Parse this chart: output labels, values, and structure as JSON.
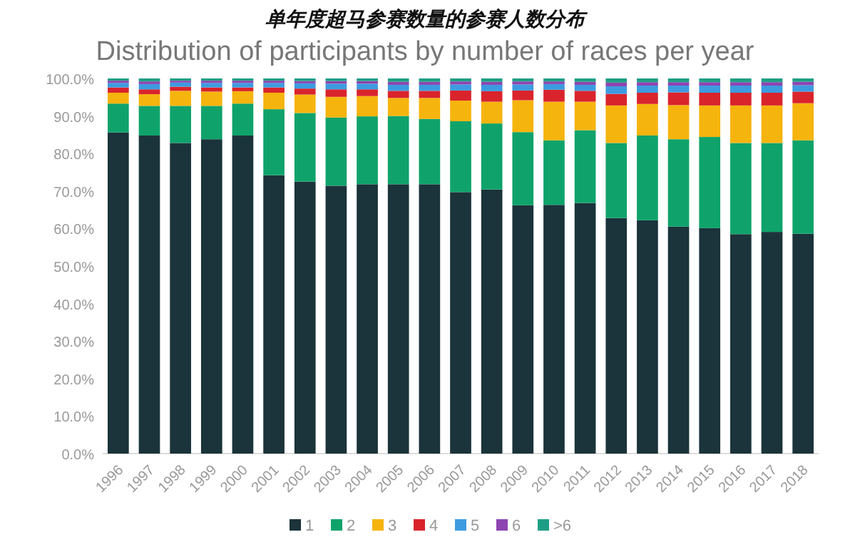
{
  "chart_data": {
    "type": "bar",
    "stacked": true,
    "title": "单年度超马参赛数量的参赛人数分布",
    "subtitle": "Distribution of participants by number of races per year",
    "categories": [
      "1996",
      "1997",
      "1998",
      "1999",
      "2000",
      "2001",
      "2002",
      "2003",
      "2004",
      "2005",
      "2006",
      "2007",
      "2008",
      "2009",
      "2010",
      "2011",
      "2012",
      "2013",
      "2014",
      "2015",
      "2016",
      "2017",
      "2018"
    ],
    "ylim": [
      0,
      100
    ],
    "yticks": [
      {
        "value": 0,
        "label": "0.0%"
      },
      {
        "value": 10,
        "label": "10.0%"
      },
      {
        "value": 20,
        "label": "20.0%"
      },
      {
        "value": 30,
        "label": "30.0%"
      },
      {
        "value": 40,
        "label": "40.0%"
      },
      {
        "value": 50,
        "label": "50.0%"
      },
      {
        "value": 60,
        "label": "60.0%"
      },
      {
        "value": 70,
        "label": "70.0%"
      },
      {
        "value": 80,
        "label": "80.0%"
      },
      {
        "value": 90,
        "label": "90.0%"
      },
      {
        "value": 100,
        "label": "100.0%"
      }
    ],
    "legend": "bottom",
    "grid": false,
    "series": [
      {
        "name": "1",
        "color": "#1b333a",
        "values": [
          85.6,
          84.8,
          82.8,
          83.8,
          84.8,
          74.2,
          72.5,
          71.4,
          71.8,
          71.8,
          71.8,
          69.7,
          70.4,
          66.2,
          66.3,
          66.8,
          62.8,
          62.2,
          60.5,
          60.1,
          58.5,
          59.1,
          58.6
        ]
      },
      {
        "name": "2",
        "color": "#0fa36b",
        "values": [
          7.7,
          7.9,
          9.9,
          8.9,
          8.5,
          17.6,
          18.3,
          18.2,
          18.1,
          18.2,
          17.4,
          18.9,
          17.6,
          19.5,
          17.2,
          19.4,
          20.0,
          22.6,
          23.3,
          24.3,
          24.3,
          23.7,
          24.9
        ]
      },
      {
        "name": "3",
        "color": "#f6b40e",
        "values": [
          2.9,
          3.1,
          4.0,
          3.8,
          3.3,
          4.4,
          4.9,
          5.5,
          5.4,
          4.8,
          5.6,
          5.5,
          5.8,
          8.5,
          10.3,
          7.6,
          10.0,
          8.4,
          9.1,
          8.4,
          10.0,
          10.0,
          9.9
        ]
      },
      {
        "name": "4",
        "color": "#d9242c",
        "values": [
          1.4,
          1.3,
          1.1,
          1.1,
          1.0,
          1.4,
          1.6,
          2.0,
          1.8,
          1.9,
          1.9,
          2.7,
          2.8,
          2.6,
          3.2,
          2.9,
          3.1,
          3.0,
          3.4,
          3.4,
          3.4,
          3.4,
          3.1
        ]
      },
      {
        "name": "5",
        "color": "#3d9be0",
        "values": [
          1.2,
          1.4,
          1.1,
          1.2,
          1.2,
          1.2,
          1.4,
          1.5,
          1.5,
          1.6,
          1.6,
          1.6,
          1.7,
          1.6,
          1.5,
          1.6,
          2.0,
          1.9,
          1.8,
          1.9,
          1.9,
          1.9,
          1.7
        ]
      },
      {
        "name": "6",
        "color": "#8e44b0",
        "values": [
          0.6,
          0.7,
          0.5,
          0.6,
          0.6,
          0.6,
          0.6,
          0.7,
          0.7,
          0.8,
          0.8,
          0.8,
          0.8,
          0.8,
          0.7,
          0.8,
          1.0,
          0.9,
          0.9,
          0.9,
          0.9,
          0.9,
          0.9
        ]
      },
      {
        "name": ">6",
        "color": "#1f9e86",
        "values": [
          0.6,
          0.8,
          0.6,
          0.6,
          0.6,
          0.6,
          0.7,
          0.7,
          0.7,
          0.9,
          0.9,
          0.8,
          0.9,
          0.8,
          0.8,
          0.9,
          1.1,
          1.0,
          1.0,
          1.0,
          1.0,
          1.0,
          0.9
        ]
      }
    ]
  }
}
